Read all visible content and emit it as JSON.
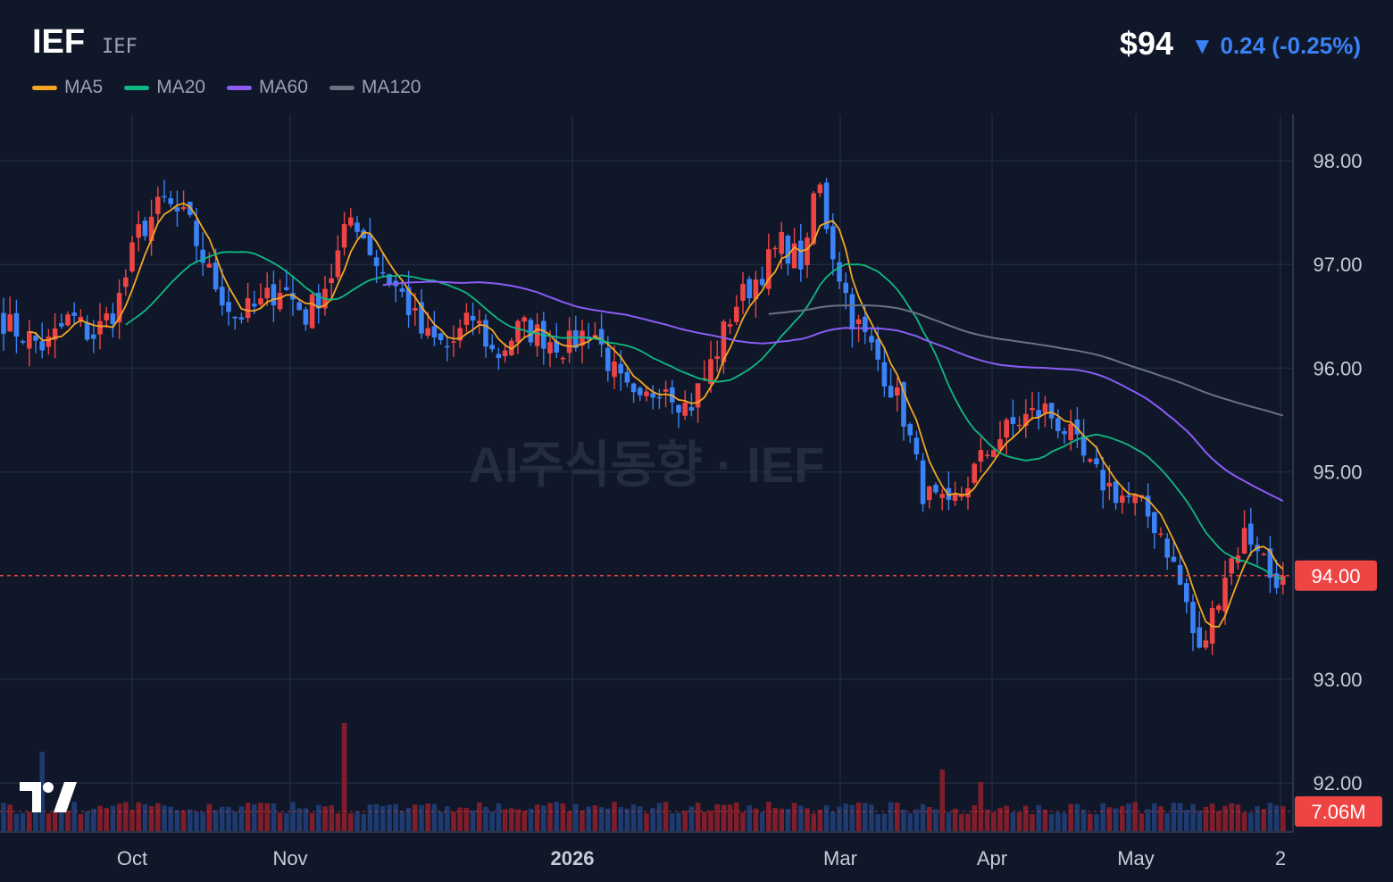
{
  "header": {
    "ticker": "IEF",
    "ticker_sub": "IEF",
    "price": "$94",
    "change": "▼ 0.24 (-0.25%)"
  },
  "legend": [
    {
      "label": "MA5",
      "color": "#f5a623"
    },
    {
      "label": "MA20",
      "color": "#10b981"
    },
    {
      "label": "MA60",
      "color": "#8b5cf6"
    },
    {
      "label": "MA120",
      "color": "#6b7280"
    }
  ],
  "watermark": "AI주식동향 · IEF",
  "price_axis": {
    "ticks": [
      "98.00",
      "97.00",
      "96.00",
      "95.00",
      "93.00",
      "92.00"
    ],
    "current_label": "94.00",
    "volume_label": "7.06M"
  },
  "time_axis": {
    "labels": [
      "Oct",
      "Nov",
      "2026",
      "Mar",
      "Apr",
      "May",
      "2"
    ]
  },
  "colors": {
    "up": "#ef4444",
    "down": "#3b82f6",
    "background": "#0f1729",
    "grid": "#1f2a3d"
  },
  "chart_data": {
    "type": "candlestick",
    "title": "IEF",
    "ylim": [
      91.6,
      98.5
    ],
    "current_price": 94.0,
    "last_volume": "7.06M",
    "x_ticks": [
      "Oct",
      "Nov",
      "2026",
      "Mar",
      "Apr",
      "May",
      "2"
    ],
    "y_ticks": [
      98,
      97,
      96,
      95,
      93,
      92
    ],
    "series": [
      {
        "name": "Price",
        "points": [
          [
            -6.3,
            96.2
          ],
          [
            -5.0,
            96.8
          ],
          [
            -4.0,
            97.2
          ],
          [
            -3.0,
            96.9
          ],
          [
            -2.0,
            97.3
          ],
          [
            -1.0,
            96.8
          ],
          [
            0.0,
            96.4
          ],
          [
            1.0,
            96.2
          ],
          [
            1.7,
            96.5
          ],
          [
            2.3,
            96.3
          ],
          [
            3.0,
            96.6
          ],
          [
            3.6,
            97.3
          ],
          [
            4.3,
            97.6
          ],
          [
            5.0,
            97.4
          ],
          [
            5.6,
            96.9
          ],
          [
            6.3,
            96.5
          ],
          [
            7.0,
            96.6
          ],
          [
            7.6,
            96.8
          ],
          [
            8.3,
            96.5
          ],
          [
            9.0,
            96.9
          ],
          [
            9.6,
            97.5
          ],
          [
            10.3,
            97.0
          ],
          [
            11.0,
            96.7
          ],
          [
            11.6,
            96.3
          ],
          [
            12.3,
            96.2
          ],
          [
            13.0,
            96.5
          ],
          [
            13.6,
            96.1
          ],
          [
            14.3,
            96.4
          ],
          [
            15.0,
            96.3
          ],
          [
            15.6,
            96.2
          ],
          [
            16.3,
            96.4
          ],
          [
            17.0,
            95.9
          ],
          [
            17.6,
            95.6
          ],
          [
            18.3,
            95.9
          ],
          [
            19.0,
            95.6
          ],
          [
            19.6,
            96.0
          ],
          [
            20.3,
            96.6
          ],
          [
            21.0,
            96.9
          ],
          [
            21.6,
            97.2
          ],
          [
            22.3,
            97.0
          ],
          [
            22.6,
            97.9
          ],
          [
            23.0,
            97.2
          ],
          [
            23.6,
            96.5
          ],
          [
            24.3,
            96.1
          ],
          [
            25.0,
            95.6
          ],
          [
            25.6,
            94.8
          ],
          [
            26.3,
            94.6
          ],
          [
            27.0,
            95.0
          ],
          [
            27.6,
            95.3
          ],
          [
            28.3,
            95.5
          ],
          [
            29.0,
            95.6
          ],
          [
            29.6,
            95.4
          ],
          [
            30.3,
            95.0
          ],
          [
            31.0,
            94.8
          ],
          [
            31.6,
            94.7
          ],
          [
            32.3,
            94.4
          ],
          [
            33.0,
            93.7
          ],
          [
            33.3,
            93.2
          ],
          [
            33.6,
            93.5
          ],
          [
            34.0,
            94.0
          ],
          [
            34.6,
            94.4
          ],
          [
            35.0,
            94.3
          ],
          [
            35.3,
            94.0
          ]
        ]
      },
      {
        "name": "MA5"
      },
      {
        "name": "MA20"
      },
      {
        "name": "MA60"
      },
      {
        "name": "MA120"
      }
    ]
  }
}
